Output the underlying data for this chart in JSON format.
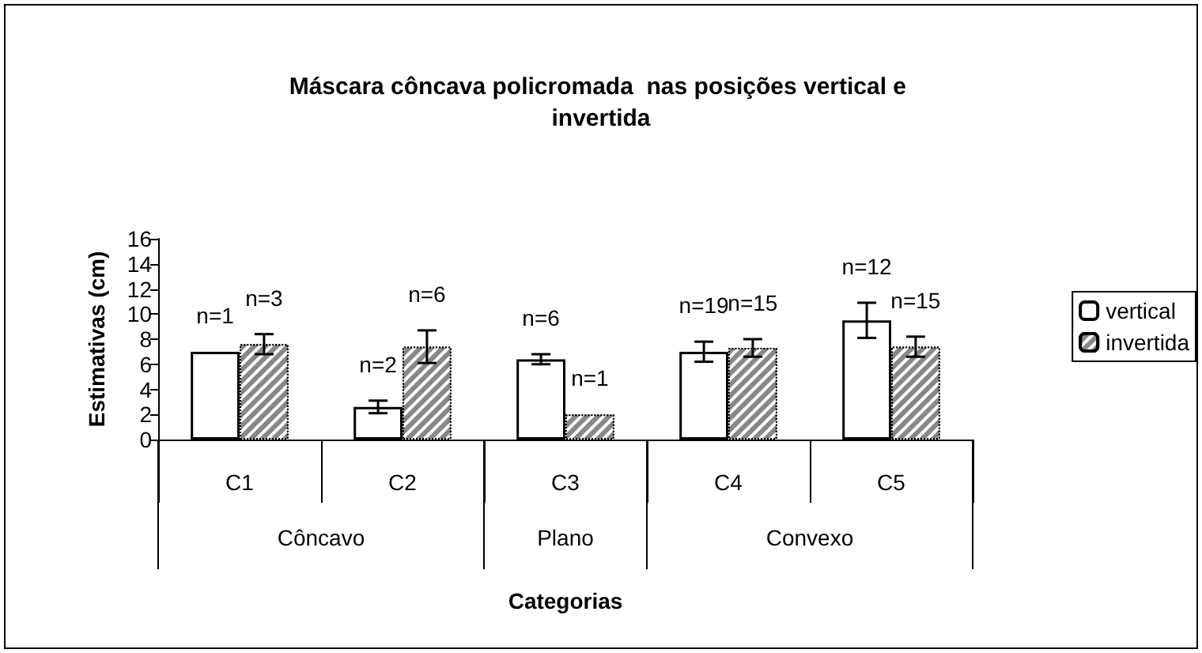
{
  "chart_data": {
    "type": "bar",
    "title": "Máscara côncava policromada  nas posições vertical e invertida",
    "ylabel": "Estimativas (cm)",
    "categories": [
      "C1",
      "C2",
      "C3",
      "C4",
      "C5"
    ],
    "annotations": [
      "Côncavo",
      "Plano",
      "Convexo",
      "Categorias",
      {
        "text": "n=1",
        "x": "C1",
        "y": 7.0
      },
      {
        "text": "n=3",
        "x": "C1",
        "y": 7.6
      },
      {
        "text": "n=2",
        "x": "C2",
        "y": 2.6
      },
      {
        "text": "n=6",
        "x": "C2",
        "y": 7.4
      },
      {
        "text": "n=6",
        "x": "C3",
        "y": 6.4
      },
      {
        "text": "n=1",
        "x": "C3",
        "y": 2.0
      },
      {
        "text": "n=19",
        "x": "C4",
        "y": 7.0
      },
      {
        "text": "n=15",
        "x": "C4",
        "y": 7.3
      },
      {
        "text": "n=12",
        "x": "C5",
        "y": 9.5
      },
      {
        "text": "n=15",
        "x": "C5",
        "y": 7.4
      }
    ],
    "series": [
      {
        "name": "vertical",
        "color": "#ffffff",
        "values": [
          7.0,
          2.6,
          6.4,
          7.0,
          9.5
        ],
        "errors": [
          null,
          0.5,
          0.4,
          0.8,
          1.4
        ]
      },
      {
        "name": "invertida",
        "color": "#888888",
        "values": [
          7.6,
          7.4,
          2.0,
          7.3,
          7.4
        ],
        "errors": [
          0.8,
          1.3,
          null,
          0.7,
          0.8
        ]
      }
    ],
    "ylim": [
      0,
      16
    ],
    "yticks": [
      0,
      2,
      4,
      6,
      8,
      10,
      12,
      14,
      16
    ],
    "grid": false,
    "legend": "right"
  }
}
